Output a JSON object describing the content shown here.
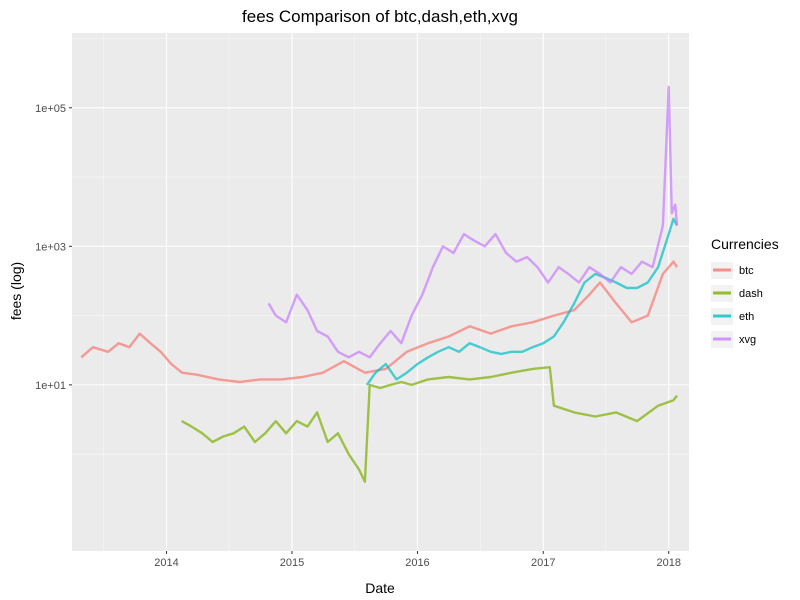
{
  "chart_data": {
    "type": "line",
    "title": "fees Comparison of  btc,dash,eth,xvg",
    "xlabel": "Date",
    "ylabel": "fees (log)",
    "y_scale": "log10",
    "ylim": [
      0.04,
      1200000
    ],
    "xlim": [
      "2013-04-01",
      "2018-03-01"
    ],
    "x_ticks": [
      "2014",
      "2015",
      "2016",
      "2017",
      "2018"
    ],
    "y_ticks": [
      "1e+01",
      "1e+03",
      "1e+05"
    ],
    "grid": true,
    "legend": {
      "title": "Currencies",
      "position": "right"
    },
    "series": [
      {
        "name": "btc",
        "color": "#F8766D",
        "points": [
          [
            "2013-04-28",
            25
          ],
          [
            "2013-06-01",
            35
          ],
          [
            "2013-07-15",
            30
          ],
          [
            "2013-08-15",
            40
          ],
          [
            "2013-09-15",
            35
          ],
          [
            "2013-10-15",
            55
          ],
          [
            "2013-11-15",
            40
          ],
          [
            "2013-12-15",
            30
          ],
          [
            "2014-01-15",
            20
          ],
          [
            "2014-02-15",
            15
          ],
          [
            "2014-04-01",
            14
          ],
          [
            "2014-06-01",
            12
          ],
          [
            "2014-08-01",
            11
          ],
          [
            "2014-10-01",
            12
          ],
          [
            "2014-12-01",
            12
          ],
          [
            "2015-02-01",
            13
          ],
          [
            "2015-04-01",
            15
          ],
          [
            "2015-06-01",
            22
          ],
          [
            "2015-08-01",
            15
          ],
          [
            "2015-10-01",
            17
          ],
          [
            "2015-12-01",
            30
          ],
          [
            "2016-02-01",
            40
          ],
          [
            "2016-04-01",
            50
          ],
          [
            "2016-06-01",
            70
          ],
          [
            "2016-08-01",
            55
          ],
          [
            "2016-10-01",
            70
          ],
          [
            "2016-12-01",
            80
          ],
          [
            "2017-02-01",
            100
          ],
          [
            "2017-04-01",
            120
          ],
          [
            "2017-05-15",
            200
          ],
          [
            "2017-06-15",
            300
          ],
          [
            "2017-08-01",
            150
          ],
          [
            "2017-09-15",
            80
          ],
          [
            "2017-11-01",
            100
          ],
          [
            "2017-12-15",
            400
          ],
          [
            "2018-01-15",
            600
          ],
          [
            "2018-01-25",
            500
          ]
        ]
      },
      {
        "name": "dash",
        "color": "#7CAE00",
        "points": [
          [
            "2014-02-14",
            3
          ],
          [
            "2014-03-15",
            2.5
          ],
          [
            "2014-04-15",
            2
          ],
          [
            "2014-05-15",
            1.5
          ],
          [
            "2014-06-15",
            1.8
          ],
          [
            "2014-07-15",
            2
          ],
          [
            "2014-08-15",
            2.5
          ],
          [
            "2014-09-15",
            1.5
          ],
          [
            "2014-10-15",
            2
          ],
          [
            "2014-11-15",
            3
          ],
          [
            "2014-12-15",
            2
          ],
          [
            "2015-01-15",
            3
          ],
          [
            "2015-02-15",
            2.5
          ],
          [
            "2015-03-15",
            4
          ],
          [
            "2015-04-15",
            1.5
          ],
          [
            "2015-05-15",
            2
          ],
          [
            "2015-06-15",
            1
          ],
          [
            "2015-07-15",
            0.6
          ],
          [
            "2015-08-01",
            0.4
          ],
          [
            "2015-08-15",
            10
          ],
          [
            "2015-09-15",
            9
          ],
          [
            "2015-10-15",
            10
          ],
          [
            "2015-11-15",
            11
          ],
          [
            "2015-12-15",
            10
          ],
          [
            "2016-02-01",
            12
          ],
          [
            "2016-04-01",
            13
          ],
          [
            "2016-06-01",
            12
          ],
          [
            "2016-08-01",
            13
          ],
          [
            "2016-10-01",
            15
          ],
          [
            "2016-12-01",
            17
          ],
          [
            "2017-01-20",
            18
          ],
          [
            "2017-02-01",
            5
          ],
          [
            "2017-04-01",
            4
          ],
          [
            "2017-06-01",
            3.5
          ],
          [
            "2017-08-01",
            4
          ],
          [
            "2017-10-01",
            3
          ],
          [
            "2017-12-01",
            5
          ],
          [
            "2018-01-15",
            6
          ],
          [
            "2018-01-25",
            7
          ]
        ]
      },
      {
        "name": "eth",
        "color": "#00BFC4",
        "points": [
          [
            "2015-08-07",
            10
          ],
          [
            "2015-09-01",
            15
          ],
          [
            "2015-10-01",
            20
          ],
          [
            "2015-11-01",
            12
          ],
          [
            "2015-12-01",
            15
          ],
          [
            "2016-01-01",
            20
          ],
          [
            "2016-02-01",
            25
          ],
          [
            "2016-03-01",
            30
          ],
          [
            "2016-04-01",
            35
          ],
          [
            "2016-05-01",
            30
          ],
          [
            "2016-06-01",
            40
          ],
          [
            "2016-07-01",
            35
          ],
          [
            "2016-08-01",
            30
          ],
          [
            "2016-09-01",
            28
          ],
          [
            "2016-10-01",
            30
          ],
          [
            "2016-11-01",
            30
          ],
          [
            "2016-12-01",
            35
          ],
          [
            "2017-01-01",
            40
          ],
          [
            "2017-02-01",
            50
          ],
          [
            "2017-03-01",
            80
          ],
          [
            "2017-04-01",
            150
          ],
          [
            "2017-05-01",
            300
          ],
          [
            "2017-06-01",
            400
          ],
          [
            "2017-07-01",
            350
          ],
          [
            "2017-08-01",
            300
          ],
          [
            "2017-09-01",
            250
          ],
          [
            "2017-10-01",
            250
          ],
          [
            "2017-11-01",
            300
          ],
          [
            "2017-12-01",
            500
          ],
          [
            "2018-01-01",
            1500
          ],
          [
            "2018-01-15",
            2500
          ],
          [
            "2018-01-25",
            2000
          ]
        ]
      },
      {
        "name": "xvg",
        "color": "#C77CFF",
        "points": [
          [
            "2014-10-25",
            150
          ],
          [
            "2014-11-15",
            100
          ],
          [
            "2014-12-15",
            80
          ],
          [
            "2015-01-15",
            200
          ],
          [
            "2015-02-15",
            120
          ],
          [
            "2015-03-15",
            60
          ],
          [
            "2015-04-15",
            50
          ],
          [
            "2015-05-15",
            30
          ],
          [
            "2015-06-15",
            25
          ],
          [
            "2015-07-15",
            30
          ],
          [
            "2015-08-15",
            25
          ],
          [
            "2015-09-15",
            40
          ],
          [
            "2015-10-15",
            60
          ],
          [
            "2015-11-15",
            40
          ],
          [
            "2015-12-15",
            100
          ],
          [
            "2016-01-15",
            200
          ],
          [
            "2016-02-15",
            500
          ],
          [
            "2016-03-15",
            1000
          ],
          [
            "2016-04-15",
            800
          ],
          [
            "2016-05-15",
            1500
          ],
          [
            "2016-06-15",
            1200
          ],
          [
            "2016-07-15",
            1000
          ],
          [
            "2016-08-15",
            1500
          ],
          [
            "2016-09-15",
            800
          ],
          [
            "2016-10-15",
            600
          ],
          [
            "2016-11-15",
            700
          ],
          [
            "2016-12-15",
            500
          ],
          [
            "2017-01-15",
            300
          ],
          [
            "2017-02-15",
            500
          ],
          [
            "2017-03-15",
            400
          ],
          [
            "2017-04-15",
            300
          ],
          [
            "2017-05-15",
            500
          ],
          [
            "2017-06-15",
            400
          ],
          [
            "2017-07-15",
            300
          ],
          [
            "2017-08-15",
            500
          ],
          [
            "2017-09-15",
            400
          ],
          [
            "2017-10-15",
            600
          ],
          [
            "2017-11-15",
            500
          ],
          [
            "2017-12-15",
            2000
          ],
          [
            "2018-01-01",
            200000
          ],
          [
            "2018-01-10",
            3000
          ],
          [
            "2018-01-20",
            4000
          ],
          [
            "2018-01-25",
            2000
          ]
        ]
      }
    ]
  }
}
